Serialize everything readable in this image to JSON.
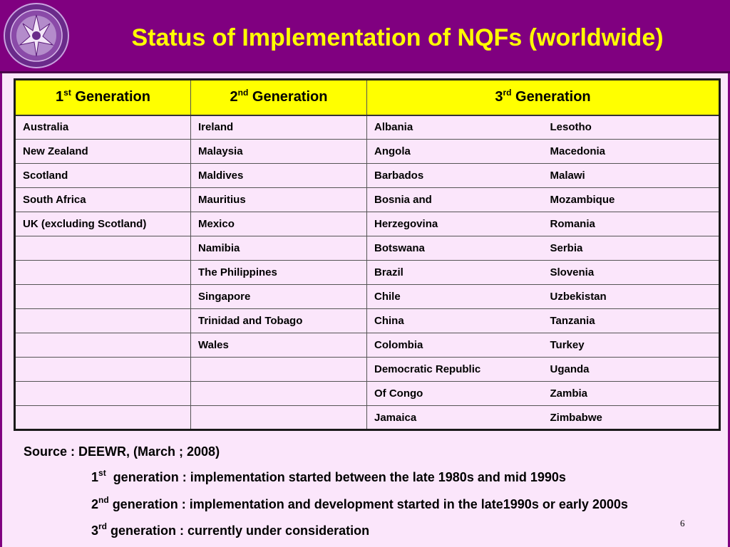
{
  "slide": {
    "title": "Status of Implementation of NQFs (worldwide)",
    "page_number": "6"
  },
  "table": {
    "headers": [
      {
        "num": "1",
        "sup": "st",
        "word": " Generation"
      },
      {
        "num": "2",
        "sup": "nd",
        "word": " Generation"
      },
      {
        "num": "3",
        "sup": "rd",
        "word": " Generation"
      }
    ],
    "rows": [
      [
        "Australia",
        "Ireland",
        "Albania",
        "Lesotho"
      ],
      [
        "New Zealand",
        "Malaysia",
        "Angola",
        "Macedonia"
      ],
      [
        "Scotland",
        "Maldives",
        "Barbados",
        "Malawi"
      ],
      [
        "South Africa",
        "Mauritius",
        "Bosnia and",
        "Mozambique"
      ],
      [
        "UK (excluding Scotland)",
        "Mexico",
        "Herzegovina",
        "Romania"
      ],
      [
        "",
        "Namibia",
        "Botswana",
        "Serbia"
      ],
      [
        "",
        "The Philippines",
        "Brazil",
        "Slovenia"
      ],
      [
        "",
        "Singapore",
        "Chile",
        "Uzbekistan"
      ],
      [
        "",
        "Trinidad and Tobago",
        "China",
        "Tanzania"
      ],
      [
        "",
        "Wales",
        "Colombia",
        "Turkey"
      ],
      [
        "",
        "",
        "Democratic Republic",
        "Uganda"
      ],
      [
        "",
        "",
        "Of Congo",
        "Zambia"
      ],
      [
        "",
        "",
        "Jamaica",
        "Zimbabwe"
      ]
    ]
  },
  "source": "Source :  DEEWR, (March ; 2008)",
  "notes": [
    {
      "num": "1",
      "sup": "st",
      "text": "  generation : implementation started between the late 1980s and mid 1990s"
    },
    {
      "num": "2",
      "sup": "nd",
      "text": " generation : implementation and development started in the late1990s or early 2000s"
    },
    {
      "num": "3",
      "sup": "rd",
      "text": " generation : currently under consideration"
    }
  ],
  "colors": {
    "header_bg": "#800080",
    "title": "#ffff00",
    "table_header_bg": "#ffff00",
    "background": "#fbe6fb"
  }
}
